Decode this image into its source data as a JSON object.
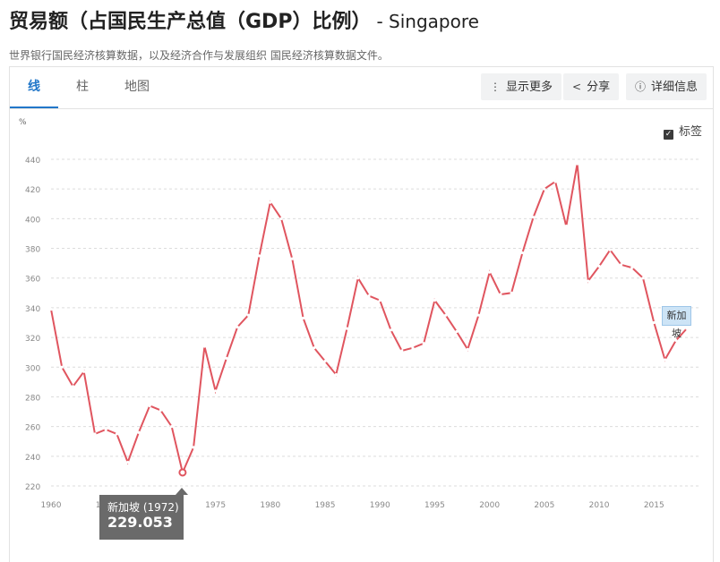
{
  "header": {
    "title": "贸易额（占国民生产总值（GDP）比例）",
    "country": "- Singapore",
    "subtitle": "世界银行国民经济核算数据，以及经济合作与发展组织 国民经济核算数据文件。"
  },
  "tabs": [
    {
      "label": "线",
      "active": true
    },
    {
      "label": "柱",
      "active": false
    },
    {
      "label": "地图",
      "active": false
    }
  ],
  "toolbar": {
    "more_label": "显示更多",
    "share_label": "分享",
    "details_label": "详细信息"
  },
  "labels_toggle": {
    "label": "标签",
    "checked": true
  },
  "colors": {
    "line": "#e0555f",
    "accent": "#2277c9",
    "grid": "#dcdcdc"
  },
  "tooltip": {
    "title": "新加坡 (1972)",
    "value": "229.053"
  },
  "chart_data": {
    "type": "line",
    "ylabel": "%",
    "ylim": [
      220,
      440
    ],
    "xlim": [
      1960,
      2018
    ],
    "yticks": [
      220,
      240,
      260,
      280,
      300,
      320,
      340,
      360,
      380,
      400,
      420,
      440
    ],
    "xticks": [
      1960,
      1965,
      1970,
      1975,
      1980,
      1985,
      1990,
      1995,
      2000,
      2005,
      2010,
      2015
    ],
    "grid": true,
    "series": [
      {
        "name": "新加坡",
        "x": [
          1960,
          1961,
          1962,
          1963,
          1964,
          1965,
          1966,
          1967,
          1968,
          1969,
          1970,
          1971,
          1972,
          1973,
          1974,
          1975,
          1976,
          1977,
          1978,
          1979,
          1980,
          1981,
          1982,
          1983,
          1984,
          1985,
          1986,
          1987,
          1988,
          1989,
          1990,
          1991,
          1992,
          1993,
          1994,
          1995,
          1996,
          1997,
          1998,
          1999,
          2000,
          2001,
          2002,
          2003,
          2004,
          2005,
          2006,
          2007,
          2008,
          2009,
          2010,
          2011,
          2012,
          2013,
          2014,
          2015,
          2016,
          2017,
          2018
        ],
        "values": [
          339,
          300,
          287,
          297,
          255,
          258,
          255,
          236,
          256,
          274,
          271,
          260,
          229.053,
          246,
          314,
          284,
          306,
          327,
          335,
          375,
          411,
          400,
          373,
          333,
          313,
          304,
          295,
          326,
          360,
          348,
          345,
          325,
          311,
          313,
          316,
          345,
          335,
          324,
          312,
          335,
          364,
          349,
          350,
          377,
          401,
          420,
          425,
          395,
          437,
          358,
          368,
          379,
          369,
          367,
          360,
          330,
          305,
          318,
          326
        ]
      }
    ]
  }
}
